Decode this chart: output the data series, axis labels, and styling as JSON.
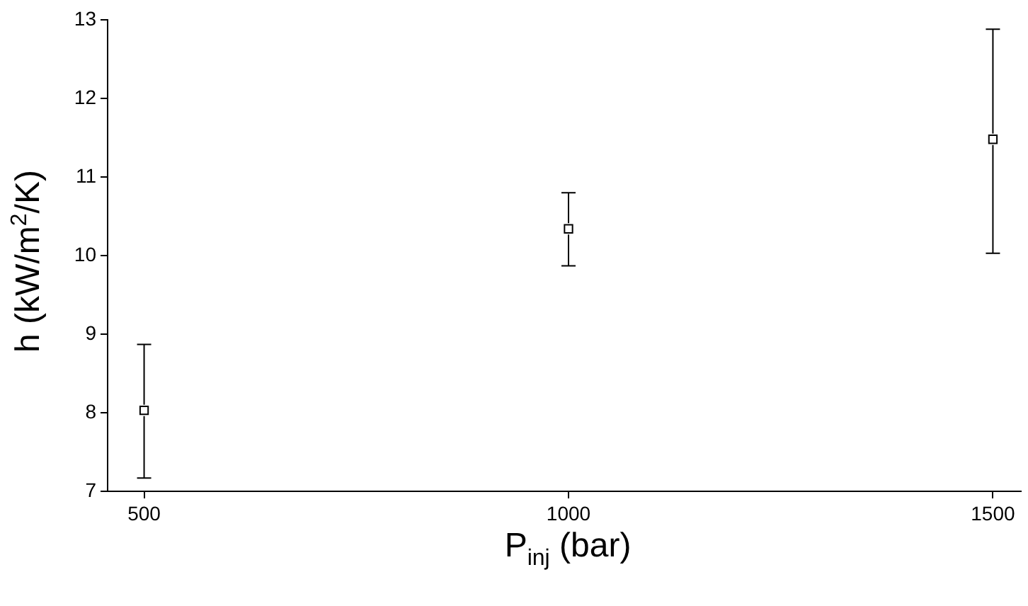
{
  "chart_data": {
    "type": "scatter",
    "xlabel": "P$_{inj}$ (bar)",
    "ylabel": "h (kW/m$^{2}$/K)",
    "x": [
      500,
      1000,
      1500
    ],
    "series": [
      {
        "color": "#000000",
        "values": [
          8.03,
          10.34,
          11.48
        ],
        "errors": [
          [
            7.17,
            8.87
          ],
          [
            9.87,
            10.8
          ],
          [
            10.03,
            12.88
          ]
        ]
      }
    ],
    "xlim": [
      457,
      1533
    ],
    "ylim": [
      7,
      13
    ],
    "xticks": [
      500,
      1000,
      1500
    ],
    "yticks": [
      7,
      8,
      9,
      10,
      11,
      12,
      13
    ],
    "marker": "square",
    "grid": false,
    "legend": false
  }
}
